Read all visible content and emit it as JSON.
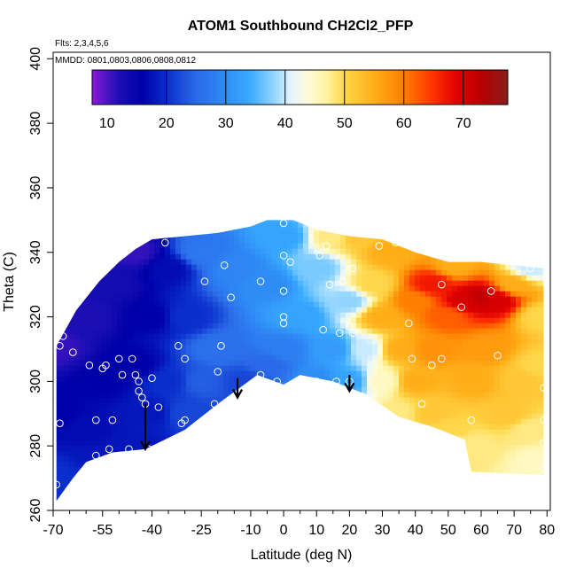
{
  "chart_data": {
    "type": "heatmap",
    "title": "ATOM1 Southbound CH2Cl2_PFP",
    "subtitle_flights": "Flts: 2,3,4,5,6",
    "subtitle_dates": "MMDD: 0801,0803,0806,0808,0812",
    "xlabel": "Latitude (deg N)",
    "ylabel": "Theta (C)",
    "xlim": [
      -70,
      81
    ],
    "ylim": [
      260,
      402
    ],
    "x_tick_labels": [
      "-70",
      "-55",
      "-40",
      "-25",
      "-10",
      "0",
      "10",
      "20",
      "30",
      "40",
      "50",
      "60",
      "70",
      "80"
    ],
    "x_major": [
      -70,
      -55,
      -40,
      -25,
      -10,
      0,
      10,
      20,
      30,
      40,
      50,
      60,
      70,
      80
    ],
    "x_minor": [
      -65,
      -60,
      -50,
      -45,
      -35,
      -30,
      -20,
      -15,
      -5,
      5,
      15,
      25,
      35,
      45,
      55,
      65,
      75
    ],
    "y_tick_labels": [
      "260",
      "280",
      "300",
      "320",
      "340",
      "360",
      "380",
      "400"
    ],
    "y_ticks": [
      260,
      280,
      300,
      320,
      340,
      360,
      380,
      400
    ],
    "colorbar": {
      "range": [
        7.5,
        77.5
      ],
      "labels": [
        "10",
        "20",
        "30",
        "40",
        "50",
        "60",
        "70"
      ],
      "ticks": [
        10,
        20,
        30,
        40,
        50,
        60,
        70
      ],
      "lines": [
        20,
        30,
        40,
        50,
        60,
        70
      ],
      "stops": [
        [
          7.5,
          "#8a1ad6"
        ],
        [
          12,
          "#1b0fb4"
        ],
        [
          16,
          "#0000a8"
        ],
        [
          20,
          "#0a2ecc"
        ],
        [
          25,
          "#2a6ae8"
        ],
        [
          30,
          "#2f8cf6"
        ],
        [
          34,
          "#38aaff"
        ],
        [
          38,
          "#8fd4ff"
        ],
        [
          41,
          "#e6f6ff"
        ],
        [
          44,
          "#fffbd6"
        ],
        [
          47,
          "#fff2a0"
        ],
        [
          50,
          "#ffd74a"
        ],
        [
          55,
          "#ffae18"
        ],
        [
          60,
          "#ff7f00"
        ],
        [
          65,
          "#ff3000"
        ],
        [
          69,
          "#e00000"
        ],
        [
          73,
          "#b80000"
        ],
        [
          77.5,
          "#8a1d1d"
        ]
      ]
    },
    "top_boundary": [
      [
        -69,
        311
      ],
      [
        -63,
        322
      ],
      [
        -56,
        331
      ],
      [
        -50,
        337
      ],
      [
        -45,
        341
      ],
      [
        -40,
        344
      ],
      [
        -30,
        345
      ],
      [
        -20,
        346
      ],
      [
        -10,
        348
      ],
      [
        -5,
        350
      ],
      [
        3,
        350
      ],
      [
        10,
        347
      ],
      [
        20,
        345
      ],
      [
        30,
        344
      ],
      [
        40,
        340
      ],
      [
        50,
        337
      ],
      [
        60,
        337
      ],
      [
        70,
        336
      ],
      [
        79,
        335
      ],
      [
        79,
        271
      ]
    ],
    "bottom_boundary": [
      [
        -69,
        263
      ],
      [
        -64,
        270
      ],
      [
        -60,
        275
      ],
      [
        -52,
        278
      ],
      [
        -42,
        279
      ],
      [
        -30,
        285
      ],
      [
        -20,
        293
      ],
      [
        -8,
        302
      ],
      [
        0,
        299
      ],
      [
        5,
        302
      ],
      [
        15,
        300
      ],
      [
        25,
        296
      ],
      [
        35,
        289
      ],
      [
        45,
        286
      ],
      [
        55,
        282
      ],
      [
        57,
        272
      ],
      [
        79,
        271
      ]
    ],
    "field_nodes": [
      [
        -69,
        270,
        20
      ],
      [
        -69,
        290,
        16
      ],
      [
        -69,
        310,
        11
      ],
      [
        -60,
        285,
        17
      ],
      [
        -60,
        320,
        12
      ],
      [
        -55,
        275,
        18
      ],
      [
        -55,
        300,
        16
      ],
      [
        -52,
        330,
        13
      ],
      [
        -45,
        280,
        18
      ],
      [
        -45,
        305,
        16
      ],
      [
        -45,
        340,
        11
      ],
      [
        -40,
        290,
        18
      ],
      [
        -40,
        320,
        16
      ],
      [
        -35,
        300,
        20
      ],
      [
        -35,
        335,
        17
      ],
      [
        -30,
        290,
        22
      ],
      [
        -30,
        320,
        20
      ],
      [
        -25,
        300,
        24
      ],
      [
        -25,
        340,
        27
      ],
      [
        -20,
        310,
        26
      ],
      [
        -15,
        335,
        29
      ],
      [
        -12,
        300,
        22
      ],
      [
        -5,
        305,
        25
      ],
      [
        -5,
        330,
        30
      ],
      [
        0,
        345,
        33
      ],
      [
        0,
        310,
        28
      ],
      [
        5,
        320,
        33
      ],
      [
        10,
        300,
        30
      ],
      [
        10,
        335,
        37
      ],
      [
        15,
        310,
        32
      ],
      [
        15,
        345,
        48
      ],
      [
        20,
        300,
        33
      ],
      [
        20,
        325,
        38
      ],
      [
        22,
        345,
        52
      ],
      [
        25,
        310,
        40
      ],
      [
        27,
        330,
        50
      ],
      [
        30,
        300,
        45
      ],
      [
        30,
        320,
        55
      ],
      [
        32,
        340,
        55
      ],
      [
        35,
        310,
        55
      ],
      [
        35,
        290,
        48
      ],
      [
        40,
        325,
        60
      ],
      [
        40,
        300,
        55
      ],
      [
        45,
        330,
        67
      ],
      [
        45,
        310,
        58
      ],
      [
        45,
        290,
        52
      ],
      [
        50,
        320,
        62
      ],
      [
        50,
        285,
        50
      ],
      [
        52,
        336,
        55
      ],
      [
        55,
        325,
        70
      ],
      [
        58,
        300,
        55
      ],
      [
        58,
        280,
        48
      ],
      [
        60,
        326,
        72
      ],
      [
        62,
        310,
        57
      ],
      [
        65,
        325,
        70
      ],
      [
        68,
        290,
        52
      ],
      [
        70,
        330,
        55
      ],
      [
        72,
        300,
        52
      ],
      [
        75,
        335,
        40
      ],
      [
        75,
        285,
        48
      ],
      [
        78,
        320,
        50
      ],
      [
        78,
        305,
        50
      ],
      [
        78,
        275,
        45
      ]
    ],
    "sample_points": [
      [
        -69,
        268
      ],
      [
        -68,
        287
      ],
      [
        -68,
        311
      ],
      [
        -67,
        314
      ],
      [
        -64,
        309
      ],
      [
        -59,
        305
      ],
      [
        -57,
        277
      ],
      [
        -57,
        288
      ],
      [
        -55,
        304
      ],
      [
        -54,
        305
      ],
      [
        -53,
        279
      ],
      [
        -52,
        288
      ],
      [
        -50,
        307
      ],
      [
        -49,
        302
      ],
      [
        -47,
        279
      ],
      [
        -46,
        307
      ],
      [
        -45,
        302
      ],
      [
        -44,
        297
      ],
      [
        -44,
        300
      ],
      [
        -43,
        295
      ],
      [
        -42,
        293
      ],
      [
        -41,
        279
      ],
      [
        -40,
        301
      ],
      [
        -38,
        292
      ],
      [
        -36,
        343
      ],
      [
        -31,
        287
      ],
      [
        -30,
        288
      ],
      [
        -30,
        307
      ],
      [
        -32,
        311
      ],
      [
        -24,
        331
      ],
      [
        -21,
        293
      ],
      [
        -20,
        303
      ],
      [
        -19,
        311
      ],
      [
        -18,
        336
      ],
      [
        -16,
        326
      ],
      [
        -7,
        302
      ],
      [
        -7,
        331
      ],
      [
        -2,
        300
      ],
      [
        0,
        349
      ],
      [
        0,
        320
      ],
      [
        0,
        318
      ],
      [
        0,
        339
      ],
      [
        0,
        328
      ],
      [
        2,
        337
      ],
      [
        10,
        300
      ],
      [
        11,
        339
      ],
      [
        12,
        316
      ],
      [
        13,
        342
      ],
      [
        14,
        330
      ],
      [
        16,
        300
      ],
      [
        17,
        315
      ],
      [
        18,
        331
      ],
      [
        20,
        300
      ],
      [
        21,
        315
      ],
      [
        20,
        317
      ],
      [
        21,
        335
      ],
      [
        26,
        295
      ],
      [
        29,
        342
      ],
      [
        34,
        343
      ],
      [
        38,
        318
      ],
      [
        39,
        307
      ],
      [
        41,
        343
      ],
      [
        42,
        293
      ],
      [
        45,
        305
      ],
      [
        48,
        330
      ],
      [
        48,
        307
      ],
      [
        54,
        323
      ],
      [
        57,
        288
      ],
      [
        63,
        328
      ],
      [
        65,
        308
      ],
      [
        75,
        335
      ],
      [
        79,
        298
      ],
      [
        79,
        288
      ],
      [
        79,
        281
      ],
      [
        79,
        273
      ]
    ],
    "arrows": [
      [
        -42,
        293,
        279
      ],
      [
        -14,
        301,
        295
      ],
      [
        20,
        302,
        297
      ]
    ]
  }
}
